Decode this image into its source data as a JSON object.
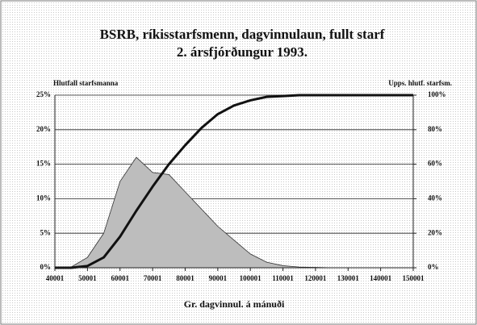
{
  "chart_data": {
    "type": "area-line",
    "title": "BSRB, ríkisstarfsmenn, dagvinnulaun, fullt starf",
    "subtitle": "2. ársfjórðungur 1993.",
    "y_label": "Hlutfall starfsmanna",
    "y2_label": "Upps. hlutf. starfsm.",
    "x_label": "Gr. dagvinnul. á mánuði",
    "x": [
      40001,
      45001,
      50001,
      55001,
      60001,
      65001,
      70001,
      75001,
      80001,
      85001,
      90001,
      95001,
      100001,
      105001,
      110001,
      115001,
      120001,
      125001,
      130001,
      135001,
      140001,
      145001,
      150001
    ],
    "series": [
      {
        "color": "#bdbdbd",
        "kind": "area",
        "values": [
          0,
          0.1,
          1.5,
          5,
          12.5,
          16,
          13.8,
          13.5,
          11,
          8.5,
          6,
          4,
          2,
          0.8,
          0.3,
          0.1,
          0.05,
          0,
          0,
          0,
          0,
          0,
          0
        ]
      },
      {
        "color": "#111111",
        "kind": "line",
        "axis": "y2",
        "values": [
          0,
          0,
          1,
          6,
          18,
          33,
          47,
          60,
          71,
          81,
          89,
          94,
          97,
          99,
          99.5,
          100,
          100,
          100,
          100,
          100,
          100,
          100,
          100
        ]
      }
    ],
    "xlim": [
      40001,
      150001
    ],
    "xticks": [
      40001,
      50001,
      60001,
      70001,
      80001,
      90001,
      100001,
      110001,
      120001,
      130001,
      140001,
      150001
    ],
    "ylim": [
      0,
      25
    ],
    "yticks": [
      {
        "value": 0,
        "label": "0%"
      },
      {
        "value": 5,
        "label": "5%"
      },
      {
        "value": 10,
        "label": "10%"
      },
      {
        "value": 15,
        "label": "15%"
      },
      {
        "value": 20,
        "label": "20%"
      },
      {
        "value": 25,
        "label": "25%"
      }
    ],
    "y2lim": [
      0,
      100
    ],
    "y2ticks": [
      {
        "value": 0,
        "label": "0%"
      },
      {
        "value": 20,
        "label": "20%"
      },
      {
        "value": 40,
        "label": "40%"
      },
      {
        "value": 60,
        "label": "60%"
      },
      {
        "value": 80,
        "label": "80%"
      },
      {
        "value": 100,
        "label": "100%"
      }
    ],
    "grid": true
  }
}
